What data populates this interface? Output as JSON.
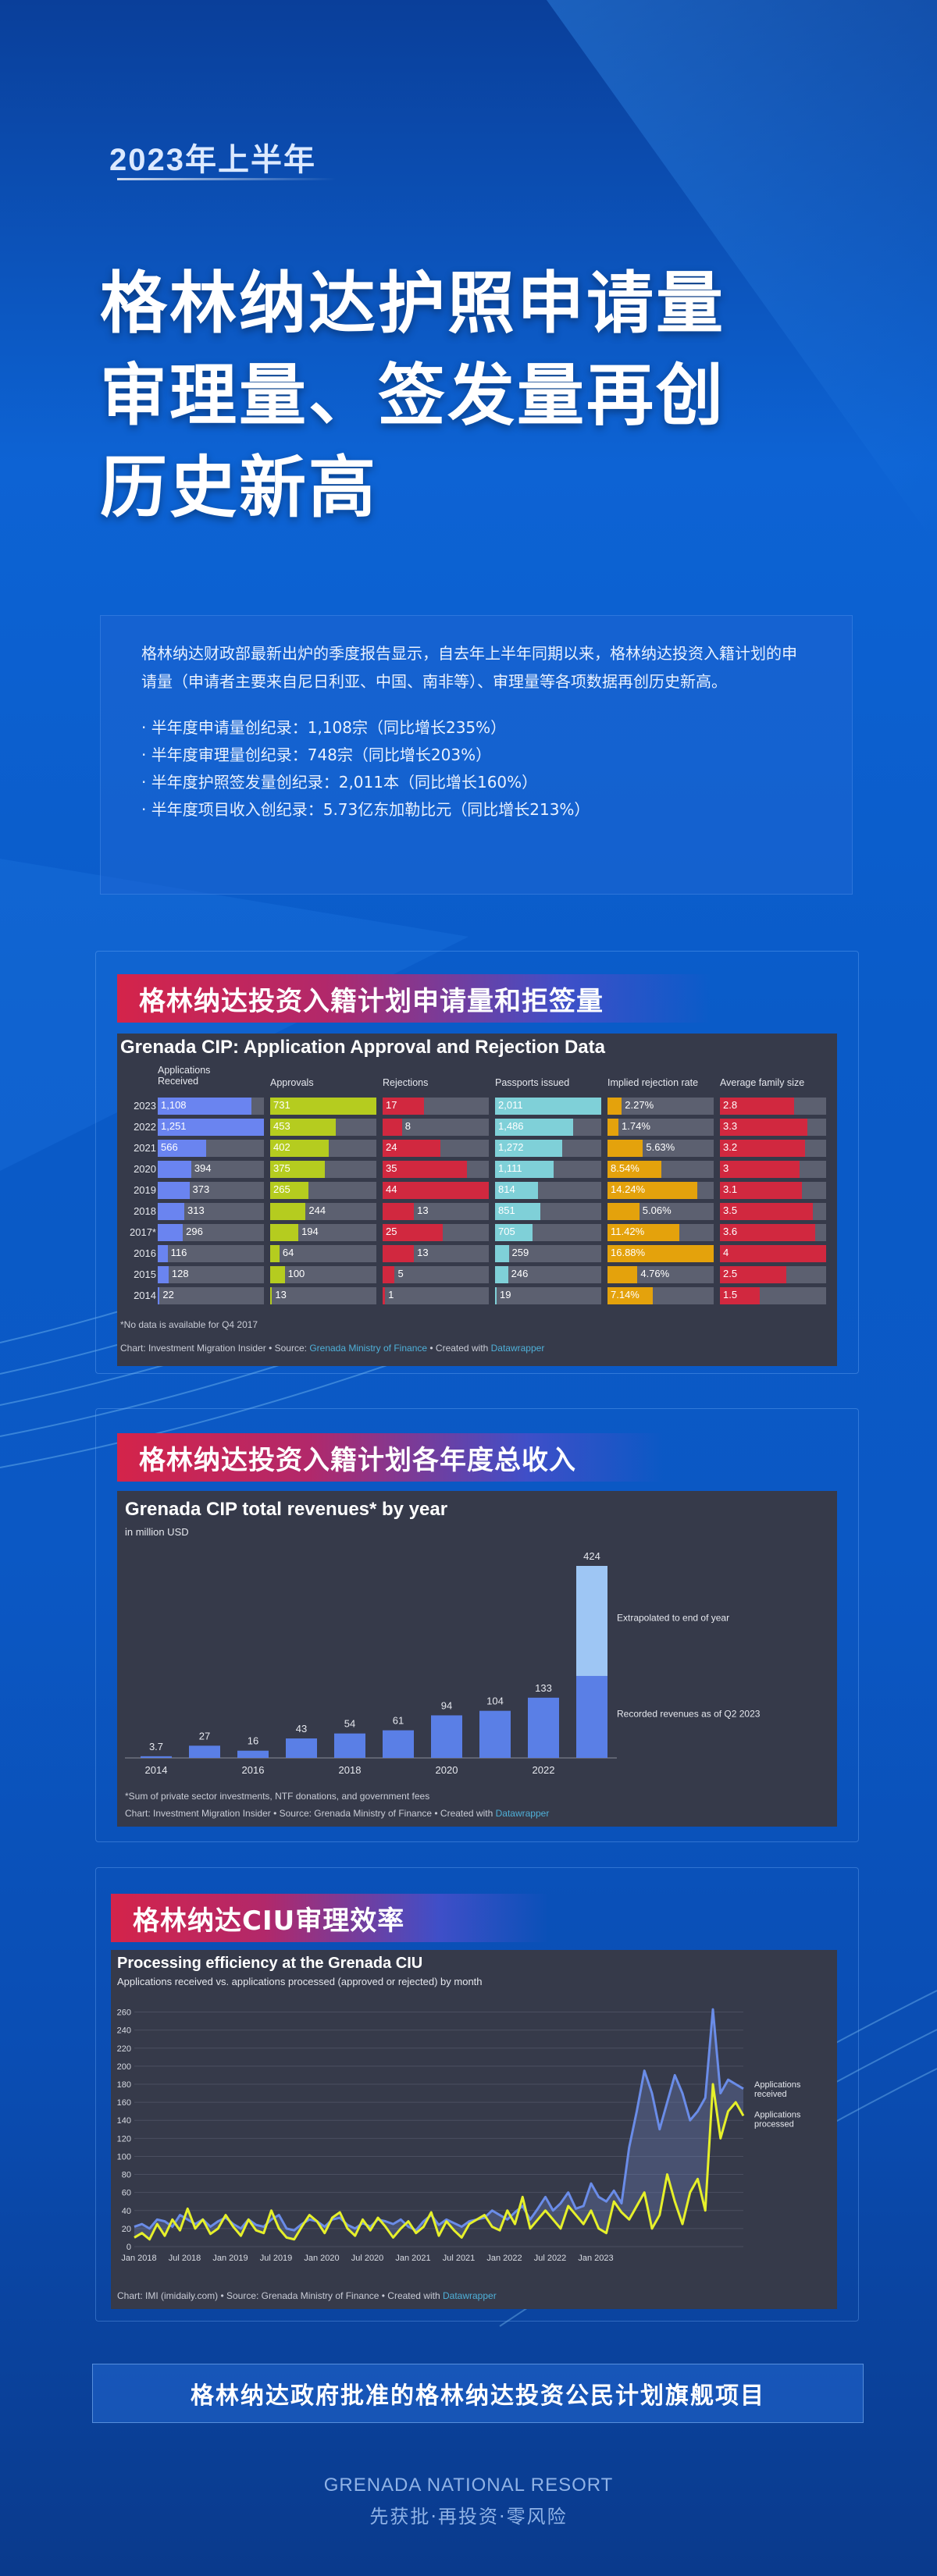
{
  "header": {
    "tag": "2023年上半年",
    "headline_lines": [
      "格林纳达护照申请量",
      "审理量、签发量再创",
      "历史新高"
    ]
  },
  "intro": {
    "paragraph": "格林纳达财政部最新出炉的季度报告显示，自去年上半年同期以来，格林纳达投资入籍计划的申请量（申请者主要来自尼日利亚、中国、南非等）、审理量等各项数据再创历史新高。",
    "bullets": [
      "半年度申请量创纪录：1,108宗（同比增长235%）",
      "半年度审理量创纪录：748宗（同比增长203%）",
      "半年度护照签发量创纪录：2,011本（同比增长160%）",
      "半年度项目收入创纪录：5.73亿东加勒比元（同比增长213%）"
    ]
  },
  "section1": {
    "title": "格林纳达投资入籍计划申请量和拒签量",
    "table": {
      "title": "Grenada CIP: Application Approval and Rejection Data",
      "headers": [
        "Applications Received",
        "Approvals",
        "Rejections",
        "Passports issued",
        "Implied rejection rate",
        "Average family size"
      ],
      "colors": [
        "#6a84f0",
        "#b5cc1f",
        "#d1283f",
        "#7fd0d8",
        "#e4a20c",
        "#d1283f"
      ],
      "rows": [
        {
          "year": "2023",
          "v": [
            "1,108",
            "731",
            "17",
            "2,011",
            "2.27%",
            "2.8"
          ],
          "n": [
            1108,
            731,
            17,
            2011,
            2.27,
            2.8
          ]
        },
        {
          "year": "2022",
          "v": [
            "1,251",
            "453",
            "8",
            "1,486",
            "1.74%",
            "3.3"
          ],
          "n": [
            1251,
            453,
            8,
            1486,
            1.74,
            3.3
          ]
        },
        {
          "year": "2021",
          "v": [
            "566",
            "402",
            "24",
            "1,272",
            "5.63%",
            "3.2"
          ],
          "n": [
            566,
            402,
            24,
            1272,
            5.63,
            3.2
          ]
        },
        {
          "year": "2020",
          "v": [
            "394",
            "375",
            "35",
            "1,111",
            "8.54%",
            "3"
          ],
          "n": [
            394,
            375,
            35,
            1111,
            8.54,
            3
          ]
        },
        {
          "year": "2019",
          "v": [
            "373",
            "265",
            "44",
            "814",
            "14.24%",
            "3.1"
          ],
          "n": [
            373,
            265,
            44,
            814,
            14.24,
            3.1
          ]
        },
        {
          "year": "2018",
          "v": [
            "313",
            "244",
            "13",
            "851",
            "5.06%",
            "3.5"
          ],
          "n": [
            313,
            244,
            13,
            851,
            5.06,
            3.5
          ]
        },
        {
          "year": "2017*",
          "v": [
            "296",
            "194",
            "25",
            "705",
            "11.42%",
            "3.6"
          ],
          "n": [
            296,
            194,
            25,
            705,
            11.42,
            3.6
          ]
        },
        {
          "year": "2016",
          "v": [
            "116",
            "64",
            "13",
            "259",
            "16.88%",
            "4"
          ],
          "n": [
            116,
            64,
            13,
            259,
            16.88,
            4
          ]
        },
        {
          "year": "2015",
          "v": [
            "128",
            "100",
            "5",
            "246",
            "4.76%",
            "2.5"
          ],
          "n": [
            128,
            100,
            5,
            246,
            4.76,
            2.5
          ]
        },
        {
          "year": "2014",
          "v": [
            "22",
            "13",
            "1",
            "19",
            "7.14%",
            "1.5"
          ],
          "n": [
            22,
            13,
            1,
            19,
            7.14,
            1.5
          ]
        }
      ],
      "note": "*No data is available for Q4 2017",
      "source_prefix": "Chart: Investment Migration Insider • Source: ",
      "source_link": "Grenada Ministry of Finance",
      "source_mid": " • Created with ",
      "source_dw": "Datawrapper"
    }
  },
  "section2": {
    "title": "格林纳达投资入籍计划各年度总收入"
  },
  "section3": {
    "title": "格林纳达CIU审理效率"
  },
  "chart_data": [
    {
      "type": "bar",
      "title": "Grenada CIP total revenues* by year",
      "subtitle": "in million  USD",
      "categories": [
        "2014",
        "2015",
        "2016",
        "2017",
        "2018",
        "2019",
        "2020",
        "2021",
        "2022",
        "2023"
      ],
      "x_tick_labels": [
        "2014",
        "2016",
        "2018",
        "2020",
        "2022"
      ],
      "series": [
        {
          "name": "Recorded revenues as of Q2 2023",
          "values": [
            3.7,
            27,
            16,
            43,
            54,
            61,
            94,
            104,
            133,
            181
          ]
        },
        {
          "name": "Extrapolated to end of year",
          "values": [
            0,
            0,
            0,
            0,
            0,
            0,
            0,
            0,
            0,
            243
          ]
        }
      ],
      "value_labels": [
        "3.7",
        "27",
        "16",
        "43",
        "54",
        "61",
        "94",
        "104",
        "133",
        "424"
      ],
      "ylim": [
        0,
        424
      ],
      "colors": {
        "recorded": "#5a7fe6",
        "extrapolated": "#9ec6f4"
      },
      "note": "*Sum of private sector investments, NTF donations, and government fees",
      "source_prefix": "Chart: Investment Migration Insider • Source: Grenada Ministry of Finance • Created with ",
      "source_dw": "Datawrapper"
    },
    {
      "type": "area",
      "title": "Processing efficiency at the Grenada CIU",
      "subtitle": "Applications received vs. applications processed (approved or rejected) by month",
      "x_tick_labels": [
        "Jan 2018",
        "Jul 2018",
        "Jan 2019",
        "Jul 2019",
        "Jan 2020",
        "Jul 2020",
        "Jan 2021",
        "Jul 2021",
        "Jan 2022",
        "Jul 2022",
        "Jan 2023"
      ],
      "y_ticks": [
        0,
        20,
        40,
        60,
        80,
        100,
        120,
        140,
        160,
        180,
        200,
        220,
        240,
        260
      ],
      "ylim": [
        0,
        270
      ],
      "series": [
        {
          "name": "Applications received",
          "color": "#6a8ce8",
          "values": [
            22,
            25,
            20,
            30,
            28,
            22,
            35,
            30,
            25,
            30,
            22,
            28,
            32,
            25,
            20,
            30,
            24,
            22,
            30,
            35,
            20,
            18,
            25,
            30,
            28,
            22,
            30,
            32,
            24,
            20,
            26,
            22,
            30,
            28,
            25,
            30,
            22,
            18,
            28,
            35,
            24,
            30,
            26,
            22,
            28,
            30,
            32,
            40,
            35,
            30,
            38,
            45,
            30,
            42,
            55,
            40,
            48,
            60,
            42,
            45,
            70,
            55,
            50,
            62,
            48,
            110,
            150,
            195,
            170,
            130,
            160,
            190,
            170,
            140,
            150,
            165,
            263,
            170,
            185,
            180,
            175
          ]
        },
        {
          "name": "Applications processed",
          "color": "#e6f02a",
          "values": [
            10,
            15,
            8,
            25,
            12,
            30,
            18,
            42,
            20,
            30,
            14,
            20,
            35,
            22,
            12,
            30,
            18,
            15,
            40,
            20,
            10,
            8,
            22,
            35,
            28,
            15,
            32,
            38,
            20,
            12,
            30,
            18,
            32,
            22,
            10,
            20,
            28,
            15,
            22,
            38,
            12,
            28,
            18,
            10,
            25,
            30,
            35,
            22,
            18,
            40,
            25,
            55,
            20,
            30,
            40,
            30,
            20,
            45,
            35,
            25,
            40,
            20,
            15,
            50,
            38,
            30,
            45,
            60,
            20,
            35,
            80,
            50,
            25,
            60,
            75,
            40,
            180,
            120,
            150,
            160,
            145
          ]
        }
      ],
      "source_prefix": "Chart: IMI (imidaily.com) • Source: Grenada Ministry of Finance • Created with ",
      "source_dw": "Datawrapper"
    }
  ],
  "footer": {
    "banner": "格林纳达政府批准的格林纳达投资公民计划旗舰项目",
    "brand_line1": "GRENADA NATIONAL RESORT",
    "brand_line2": "先获批·再投资·零风险"
  }
}
